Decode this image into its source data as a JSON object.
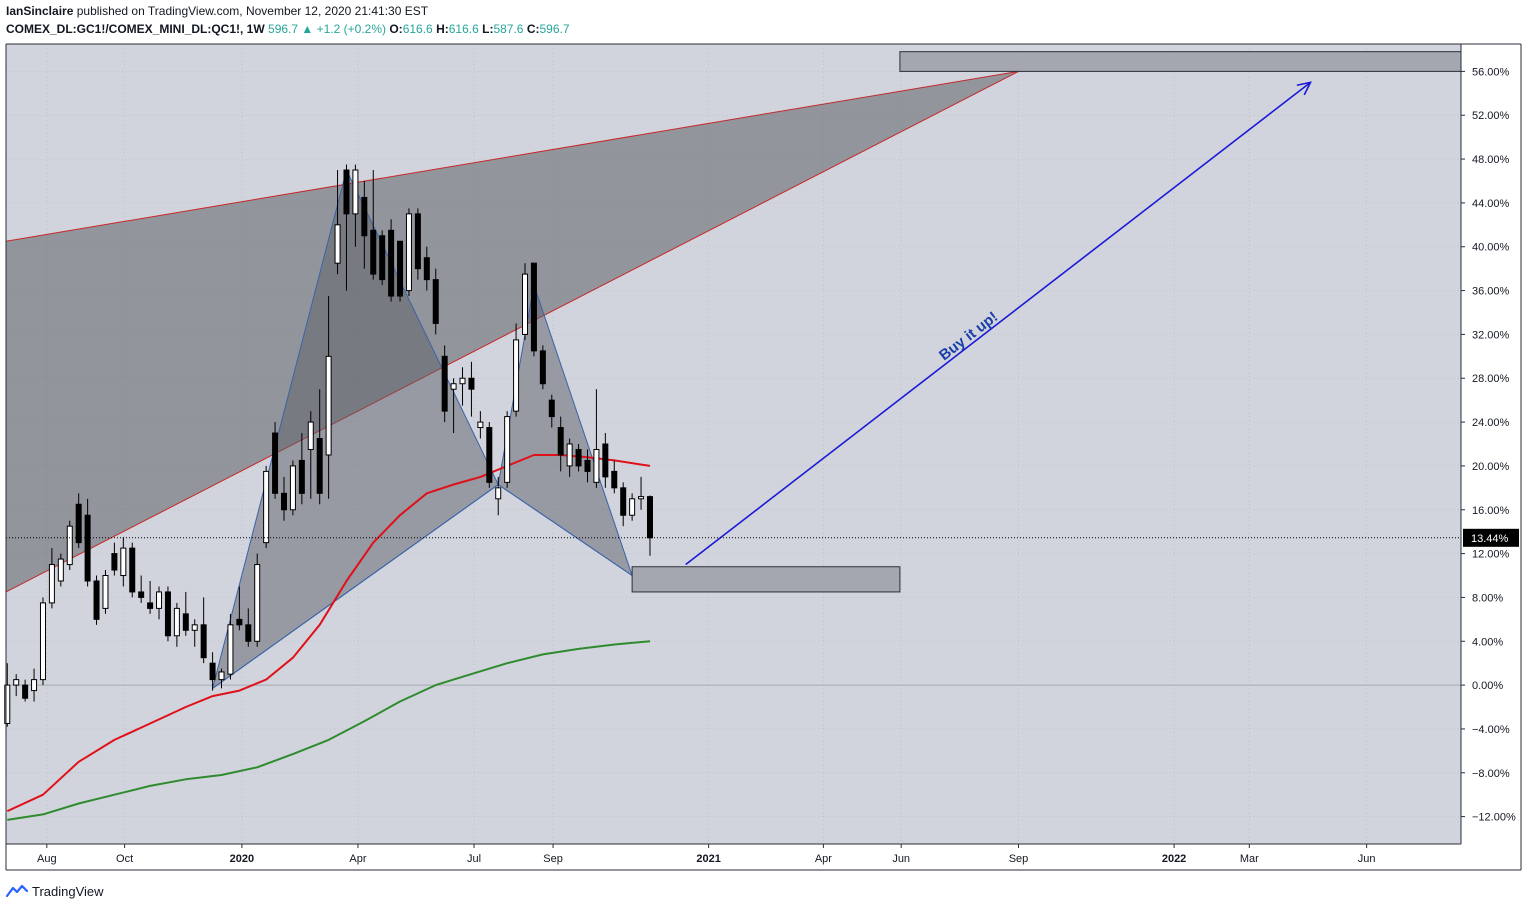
{
  "header": {
    "publisher_user": "IanSinclaire",
    "publisher_rest": "published on TradingView.com, November 12, 2020 21:41:30 EST",
    "symbol": "COMEX_DL:GC1!/COMEX_MINI_DL:QC1!, 1W",
    "last": "596.7",
    "change": "▲ +1.2 (+0.2%)",
    "open_label": "O:",
    "open": "616.6",
    "high_label": "H:",
    "high": "616.6",
    "low_label": "L:",
    "low": "587.6",
    "close_label": "C:",
    "close": "596.7"
  },
  "footer": {
    "brand": "TradingView",
    "logo_icon": "tradingview-logo-icon"
  },
  "colors": {
    "background": "#d1d4dc",
    "up": "#ffffff",
    "down": "#000000",
    "ma_fast": "#e0101a",
    "ma_slow": "#2e8b2e",
    "wedge_line": "#c62828",
    "harmonic_line": "#3a63a8",
    "arrow": "#1a1ad6",
    "zone": "#9598a1"
  },
  "chart_data": {
    "type": "candlestick",
    "timeframe": "1W",
    "y_unit": "%",
    "ylim": [
      -14.5,
      58.5
    ],
    "y_ticks": [
      -12,
      -8,
      -4,
      0,
      4,
      8,
      12,
      16,
      20,
      24,
      28,
      32,
      36,
      40,
      44,
      48,
      52,
      56
    ],
    "y_tick_labels": [
      "−12.00%",
      "−8.00%",
      "−4.00%",
      "0.00%",
      "4.00%",
      "8.00%",
      "12.00%",
      "16.00%",
      "20.00%",
      "24.00%",
      "28.00%",
      "32.00%",
      "36.00%",
      "40.00%",
      "44.00%",
      "48.00%",
      "52.00%",
      "56.00%"
    ],
    "x_range": [
      "2019-06-30",
      "2022-08-14"
    ],
    "x_ticks": [
      {
        "date": "2019-08-01",
        "label": "Aug",
        "bold": false
      },
      {
        "date": "2019-10-01",
        "label": "Oct",
        "bold": false
      },
      {
        "date": "2020-01-01",
        "label": "2020",
        "bold": true
      },
      {
        "date": "2020-04-01",
        "label": "Apr",
        "bold": false
      },
      {
        "date": "2020-07-01",
        "label": "Jul",
        "bold": false
      },
      {
        "date": "2020-09-01",
        "label": "Sep",
        "bold": false
      },
      {
        "date": "2021-01-01",
        "label": "2021",
        "bold": true
      },
      {
        "date": "2021-04-01",
        "label": "Apr",
        "bold": false
      },
      {
        "date": "2021-06-01",
        "label": "Jun",
        "bold": false
      },
      {
        "date": "2021-09-01",
        "label": "Sep",
        "bold": false
      },
      {
        "date": "2022-01-01",
        "label": "2022",
        "bold": true
      },
      {
        "date": "2022-03-01",
        "label": "Mar",
        "bold": false
      },
      {
        "date": "2022-06-01",
        "label": "Jun",
        "bold": false
      }
    ],
    "last_value": 13.44,
    "last_value_label": "13.44%",
    "candles": [
      {
        "t": "2019-07-01",
        "o": -3.5,
        "h": 2.0,
        "l": -3.8,
        "c": 0.0
      },
      {
        "t": "2019-07-08",
        "o": 0.0,
        "h": 1.0,
        "l": -1.0,
        "c": 0.5
      },
      {
        "t": "2019-07-15",
        "o": 0.0,
        "h": 0.5,
        "l": -1.5,
        "c": -1.2
      },
      {
        "t": "2019-07-22",
        "o": -0.5,
        "h": 1.5,
        "l": -1.5,
        "c": 0.5
      },
      {
        "t": "2019-07-29",
        "o": 0.5,
        "h": 8.0,
        "l": 0.0,
        "c": 7.5
      },
      {
        "t": "2019-08-05",
        "o": 7.5,
        "h": 12.5,
        "l": 7.0,
        "c": 11.0
      },
      {
        "t": "2019-08-12",
        "o": 9.5,
        "h": 12.0,
        "l": 9.0,
        "c": 11.5
      },
      {
        "t": "2019-08-19",
        "o": 11.0,
        "h": 15.0,
        "l": 10.5,
        "c": 14.5
      },
      {
        "t": "2019-08-26",
        "o": 16.5,
        "h": 17.5,
        "l": 12.5,
        "c": 13.0
      },
      {
        "t": "2019-09-02",
        "o": 15.5,
        "h": 17.0,
        "l": 9.0,
        "c": 9.5
      },
      {
        "t": "2019-09-09",
        "o": 9.5,
        "h": 10.0,
        "l": 5.5,
        "c": 6.0
      },
      {
        "t": "2019-09-16",
        "o": 7.0,
        "h": 10.5,
        "l": 6.5,
        "c": 10.0
      },
      {
        "t": "2019-09-23",
        "o": 12.0,
        "h": 13.0,
        "l": 10.0,
        "c": 10.5
      },
      {
        "t": "2019-09-30",
        "o": 10.0,
        "h": 13.5,
        "l": 9.0,
        "c": 12.5
      },
      {
        "t": "2019-10-07",
        "o": 12.5,
        "h": 13.0,
        "l": 8.0,
        "c": 8.5
      },
      {
        "t": "2019-10-14",
        "o": 8.5,
        "h": 10.0,
        "l": 7.5,
        "c": 8.0
      },
      {
        "t": "2019-10-21",
        "o": 7.5,
        "h": 9.5,
        "l": 6.5,
        "c": 7.0
      },
      {
        "t": "2019-10-28",
        "o": 7.0,
        "h": 9.0,
        "l": 6.0,
        "c": 8.5
      },
      {
        "t": "2019-11-04",
        "o": 8.5,
        "h": 9.0,
        "l": 4.0,
        "c": 4.5
      },
      {
        "t": "2019-11-11",
        "o": 4.5,
        "h": 7.5,
        "l": 3.5,
        "c": 7.0
      },
      {
        "t": "2019-11-18",
        "o": 6.5,
        "h": 8.5,
        "l": 4.5,
        "c": 5.0
      },
      {
        "t": "2019-11-25",
        "o": 5.0,
        "h": 6.0,
        "l": 3.5,
        "c": 5.5
      },
      {
        "t": "2019-12-02",
        "o": 5.5,
        "h": 8.0,
        "l": 2.0,
        "c": 2.5
      },
      {
        "t": "2019-12-09",
        "o": 2.0,
        "h": 3.0,
        "l": -0.5,
        "c": 0.5
      },
      {
        "t": "2019-12-16",
        "o": 0.5,
        "h": 1.5,
        "l": -0.3,
        "c": 1.2
      },
      {
        "t": "2019-12-23",
        "o": 1.0,
        "h": 6.5,
        "l": 0.5,
        "c": 5.5
      },
      {
        "t": "2019-12-30",
        "o": 6.0,
        "h": 9.0,
        "l": 5.0,
        "c": 5.5
      },
      {
        "t": "2020-01-06",
        "o": 5.5,
        "h": 7.0,
        "l": 3.5,
        "c": 4.0
      },
      {
        "t": "2020-01-13",
        "o": 4.0,
        "h": 12.0,
        "l": 3.5,
        "c": 11.0
      },
      {
        "t": "2020-01-20",
        "o": 13.0,
        "h": 20.0,
        "l": 12.5,
        "c": 19.5
      },
      {
        "t": "2020-01-27",
        "o": 23.0,
        "h": 24.0,
        "l": 17.0,
        "c": 17.5
      },
      {
        "t": "2020-02-03",
        "o": 17.5,
        "h": 19.0,
        "l": 15.0,
        "c": 16.0
      },
      {
        "t": "2020-02-10",
        "o": 16.0,
        "h": 20.5,
        "l": 15.5,
        "c": 20.0
      },
      {
        "t": "2020-02-17",
        "o": 20.5,
        "h": 23.0,
        "l": 16.5,
        "c": 17.5
      },
      {
        "t": "2020-02-24",
        "o": 21.5,
        "h": 25.0,
        "l": 17.0,
        "c": 24.0
      },
      {
        "t": "2020-03-02",
        "o": 22.5,
        "h": 27.0,
        "l": 16.5,
        "c": 17.5
      },
      {
        "t": "2020-03-09",
        "o": 21.0,
        "h": 35.5,
        "l": 17.0,
        "c": 30.0
      },
      {
        "t": "2020-03-16",
        "o": 38.5,
        "h": 47.0,
        "l": 37.5,
        "c": 42.0
      },
      {
        "t": "2020-03-23",
        "o": 47.0,
        "h": 47.5,
        "l": 36.0,
        "c": 43.0
      },
      {
        "t": "2020-03-30",
        "o": 43.0,
        "h": 47.5,
        "l": 40.0,
        "c": 47.0
      },
      {
        "t": "2020-04-06",
        "o": 44.5,
        "h": 46.0,
        "l": 38.0,
        "c": 41.0
      },
      {
        "t": "2020-04-13",
        "o": 41.5,
        "h": 47.0,
        "l": 37.0,
        "c": 37.5
      },
      {
        "t": "2020-04-20",
        "o": 41.0,
        "h": 41.5,
        "l": 36.5,
        "c": 37.0
      },
      {
        "t": "2020-04-27",
        "o": 41.5,
        "h": 42.5,
        "l": 35.0,
        "c": 35.5
      },
      {
        "t": "2020-05-04",
        "o": 40.5,
        "h": 40.5,
        "l": 35.0,
        "c": 35.5
      },
      {
        "t": "2020-05-11",
        "o": 36.0,
        "h": 43.5,
        "l": 35.5,
        "c": 43.0
      },
      {
        "t": "2020-05-18",
        "o": 43.0,
        "h": 43.5,
        "l": 37.0,
        "c": 38.0
      },
      {
        "t": "2020-05-25",
        "o": 39.0,
        "h": 40.0,
        "l": 36.0,
        "c": 37.0
      },
      {
        "t": "2020-06-01",
        "o": 37.0,
        "h": 38.0,
        "l": 32.0,
        "c": 33.0
      },
      {
        "t": "2020-06-08",
        "o": 30.0,
        "h": 31.0,
        "l": 24.0,
        "c": 25.0
      },
      {
        "t": "2020-06-15",
        "o": 27.0,
        "h": 28.0,
        "l": 23.0,
        "c": 27.5
      },
      {
        "t": "2020-06-22",
        "o": 27.5,
        "h": 29.0,
        "l": 25.5,
        "c": 28.0
      },
      {
        "t": "2020-06-29",
        "o": 28.0,
        "h": 29.5,
        "l": 24.5,
        "c": 27.0
      },
      {
        "t": "2020-07-06",
        "o": 23.5,
        "h": 25.0,
        "l": 22.5,
        "c": 24.0
      },
      {
        "t": "2020-07-13",
        "o": 23.5,
        "h": 24.0,
        "l": 18.0,
        "c": 18.5
      },
      {
        "t": "2020-07-20",
        "o": 17.0,
        "h": 19.0,
        "l": 15.5,
        "c": 18.0
      },
      {
        "t": "2020-07-27",
        "o": 18.5,
        "h": 25.0,
        "l": 18.0,
        "c": 24.5
      },
      {
        "t": "2020-08-03",
        "o": 25.0,
        "h": 33.0,
        "l": 24.5,
        "c": 31.5
      },
      {
        "t": "2020-08-10",
        "o": 32.0,
        "h": 38.5,
        "l": 31.5,
        "c": 37.5
      },
      {
        "t": "2020-08-17",
        "o": 38.5,
        "h": 38.5,
        "l": 30.0,
        "c": 30.5
      },
      {
        "t": "2020-08-24",
        "o": 30.5,
        "h": 31.0,
        "l": 27.0,
        "c": 27.5
      },
      {
        "t": "2020-08-31",
        "o": 26.0,
        "h": 26.5,
        "l": 23.5,
        "c": 24.5
      },
      {
        "t": "2020-09-07",
        "o": 23.5,
        "h": 24.5,
        "l": 19.5,
        "c": 21.0
      },
      {
        "t": "2020-09-14",
        "o": 20.0,
        "h": 22.5,
        "l": 19.0,
        "c": 22.0
      },
      {
        "t": "2020-09-21",
        "o": 21.5,
        "h": 22.0,
        "l": 19.5,
        "c": 20.0
      },
      {
        "t": "2020-09-28",
        "o": 20.5,
        "h": 21.5,
        "l": 18.5,
        "c": 19.5
      },
      {
        "t": "2020-10-05",
        "o": 18.5,
        "h": 27.0,
        "l": 18.0,
        "c": 21.5
      },
      {
        "t": "2020-10-12",
        "o": 22.0,
        "h": 23.0,
        "l": 18.0,
        "c": 19.0
      },
      {
        "t": "2020-10-19",
        "o": 19.5,
        "h": 20.5,
        "l": 17.5,
        "c": 18.0
      },
      {
        "t": "2020-10-26",
        "o": 18.0,
        "h": 18.5,
        "l": 14.5,
        "c": 15.5
      },
      {
        "t": "2020-11-02",
        "o": 15.5,
        "h": 17.5,
        "l": 15.0,
        "c": 17.0
      },
      {
        "t": "2020-11-09",
        "o": 17.0,
        "h": 19.0,
        "l": 16.0,
        "c": 17.2
      },
      {
        "t": "2020-11-16",
        "o": 17.2,
        "h": 17.3,
        "l": 11.8,
        "c": 13.44
      }
    ],
    "series": [
      {
        "kind": "moving-average",
        "color": "#e0101a",
        "points": [
          {
            "t": "2019-07-01",
            "v": -11.5
          },
          {
            "t": "2019-07-29",
            "v": -10.0
          },
          {
            "t": "2019-08-26",
            "v": -7.0
          },
          {
            "t": "2019-09-23",
            "v": -5.0
          },
          {
            "t": "2019-10-21",
            "v": -3.5
          },
          {
            "t": "2019-11-18",
            "v": -2.0
          },
          {
            "t": "2019-12-09",
            "v": -1.0
          },
          {
            "t": "2019-12-30",
            "v": -0.5
          },
          {
            "t": "2020-01-20",
            "v": 0.5
          },
          {
            "t": "2020-02-10",
            "v": 2.5
          },
          {
            "t": "2020-03-02",
            "v": 5.5
          },
          {
            "t": "2020-03-23",
            "v": 9.5
          },
          {
            "t": "2020-04-13",
            "v": 13.0
          },
          {
            "t": "2020-05-04",
            "v": 15.5
          },
          {
            "t": "2020-05-25",
            "v": 17.5
          },
          {
            "t": "2020-06-15",
            "v": 18.3
          },
          {
            "t": "2020-07-06",
            "v": 19.0
          },
          {
            "t": "2020-07-27",
            "v": 20.0
          },
          {
            "t": "2020-08-17",
            "v": 21.0
          },
          {
            "t": "2020-09-07",
            "v": 21.0
          },
          {
            "t": "2020-09-28",
            "v": 20.8
          },
          {
            "t": "2020-10-19",
            "v": 20.5
          },
          {
            "t": "2020-11-16",
            "v": 20.0
          }
        ]
      },
      {
        "kind": "moving-average",
        "color": "#2e8b2e",
        "points": [
          {
            "t": "2019-07-01",
            "v": -12.3
          },
          {
            "t": "2019-07-29",
            "v": -11.8
          },
          {
            "t": "2019-08-26",
            "v": -10.8
          },
          {
            "t": "2019-09-23",
            "v": -10.0
          },
          {
            "t": "2019-10-21",
            "v": -9.2
          },
          {
            "t": "2019-11-18",
            "v": -8.6
          },
          {
            "t": "2019-12-16",
            "v": -8.2
          },
          {
            "t": "2020-01-13",
            "v": -7.5
          },
          {
            "t": "2020-02-10",
            "v": -6.3
          },
          {
            "t": "2020-03-09",
            "v": -5.0
          },
          {
            "t": "2020-04-06",
            "v": -3.3
          },
          {
            "t": "2020-05-04",
            "v": -1.5
          },
          {
            "t": "2020-06-01",
            "v": 0.0
          },
          {
            "t": "2020-06-29",
            "v": 1.0
          },
          {
            "t": "2020-07-27",
            "v": 2.0
          },
          {
            "t": "2020-08-24",
            "v": 2.8
          },
          {
            "t": "2020-09-21",
            "v": 3.3
          },
          {
            "t": "2020-10-19",
            "v": 3.7
          },
          {
            "t": "2020-11-16",
            "v": 4.0
          }
        ]
      }
    ],
    "drawings": {
      "wedge": {
        "apex": {
          "t": "2021-09-01",
          "v": 56.0
        },
        "upper_start": {
          "t": "2019-06-30",
          "v": 40.5
        },
        "lower_start": {
          "t": "2019-06-30",
          "v": 8.5
        }
      },
      "harmonic_points": [
        {
          "t": "2019-12-09",
          "v": -0.3
        },
        {
          "t": "2020-03-23",
          "v": 47.0
        },
        {
          "t": "2020-07-20",
          "v": 18.3
        },
        {
          "t": "2020-08-17",
          "v": 36.5
        },
        {
          "t": "2020-11-02",
          "v": 10.0
        }
      ],
      "zones": [
        {
          "t1": "2020-11-02",
          "t2": "2021-05-31",
          "v1": 8.5,
          "v2": 10.8
        },
        {
          "t1": "2021-05-31",
          "t2": "2022-08-14",
          "v1": 56.0,
          "v2": 57.8
        }
      ],
      "arrow": {
        "from": {
          "t": "2020-12-14",
          "v": 11.0
        },
        "to": {
          "t": "2022-04-18",
          "v": 55.0
        }
      },
      "annotation": {
        "text": "Buy it up!",
        "t": "2021-07-26",
        "v": 31.5
      }
    }
  }
}
